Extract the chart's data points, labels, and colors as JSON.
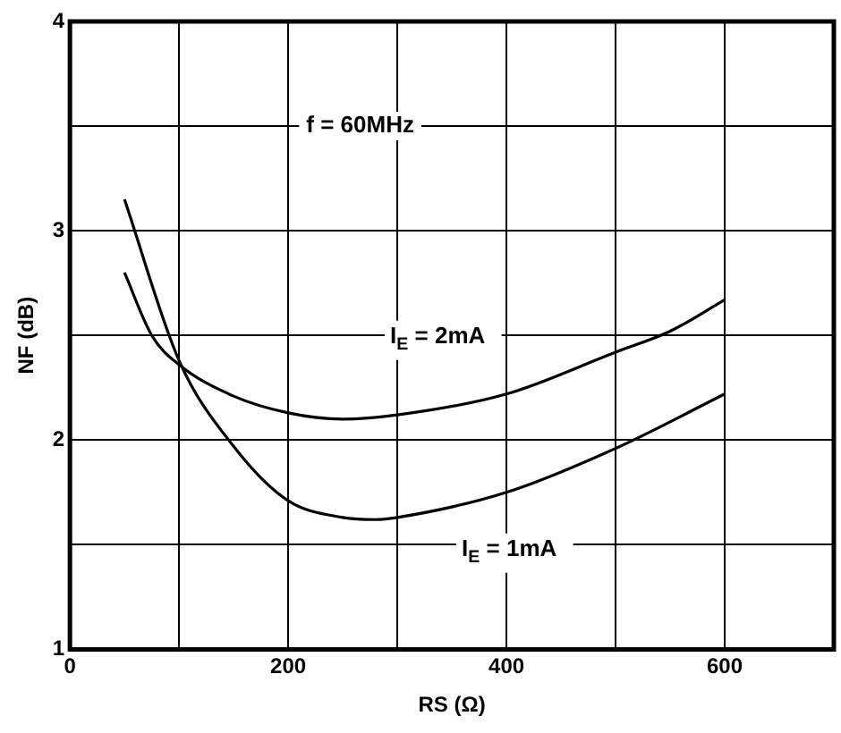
{
  "chart_data": {
    "type": "line",
    "xlabel": "RS (Ω)",
    "ylabel": "NF (dB)",
    "annotations": [
      "f = 60MHz"
    ],
    "series": [
      {
        "name": "I$_{E}$ = 2mA",
        "color": "#000000",
        "x": [
          50,
          75,
          100,
          150,
          200,
          250,
          300,
          400,
          500,
          550,
          600
        ],
        "values": [
          2.8,
          2.5,
          2.36,
          2.21,
          2.13,
          2.1,
          2.12,
          2.22,
          2.42,
          2.52,
          2.67
        ]
      },
      {
        "name": "I$_{E}$ = 1mA",
        "color": "#000000",
        "x": [
          50,
          100,
          150,
          200,
          250,
          280,
          300,
          400,
          500,
          600
        ],
        "values": [
          3.15,
          2.38,
          1.97,
          1.71,
          1.63,
          1.62,
          1.63,
          1.75,
          1.96,
          2.22
        ]
      }
    ],
    "xlim": [
      0,
      700
    ],
    "xticks": [
      0,
      {
        "value": 100,
        "label": null
      },
      200,
      {
        "value": 300,
        "label": null
      },
      400,
      {
        "value": 500,
        "label": null
      },
      600,
      {
        "value": 700,
        "label": null
      }
    ],
    "ylim": [
      1,
      4
    ],
    "yticks": [
      1,
      {
        "value": 1.5,
        "label": null
      },
      2,
      {
        "value": 2.5,
        "label": null
      },
      3,
      {
        "value": 3.5,
        "label": null
      },
      4
    ],
    "grid": true,
    "legend": false,
    "marker": "none",
    "line_style": "solid"
  }
}
